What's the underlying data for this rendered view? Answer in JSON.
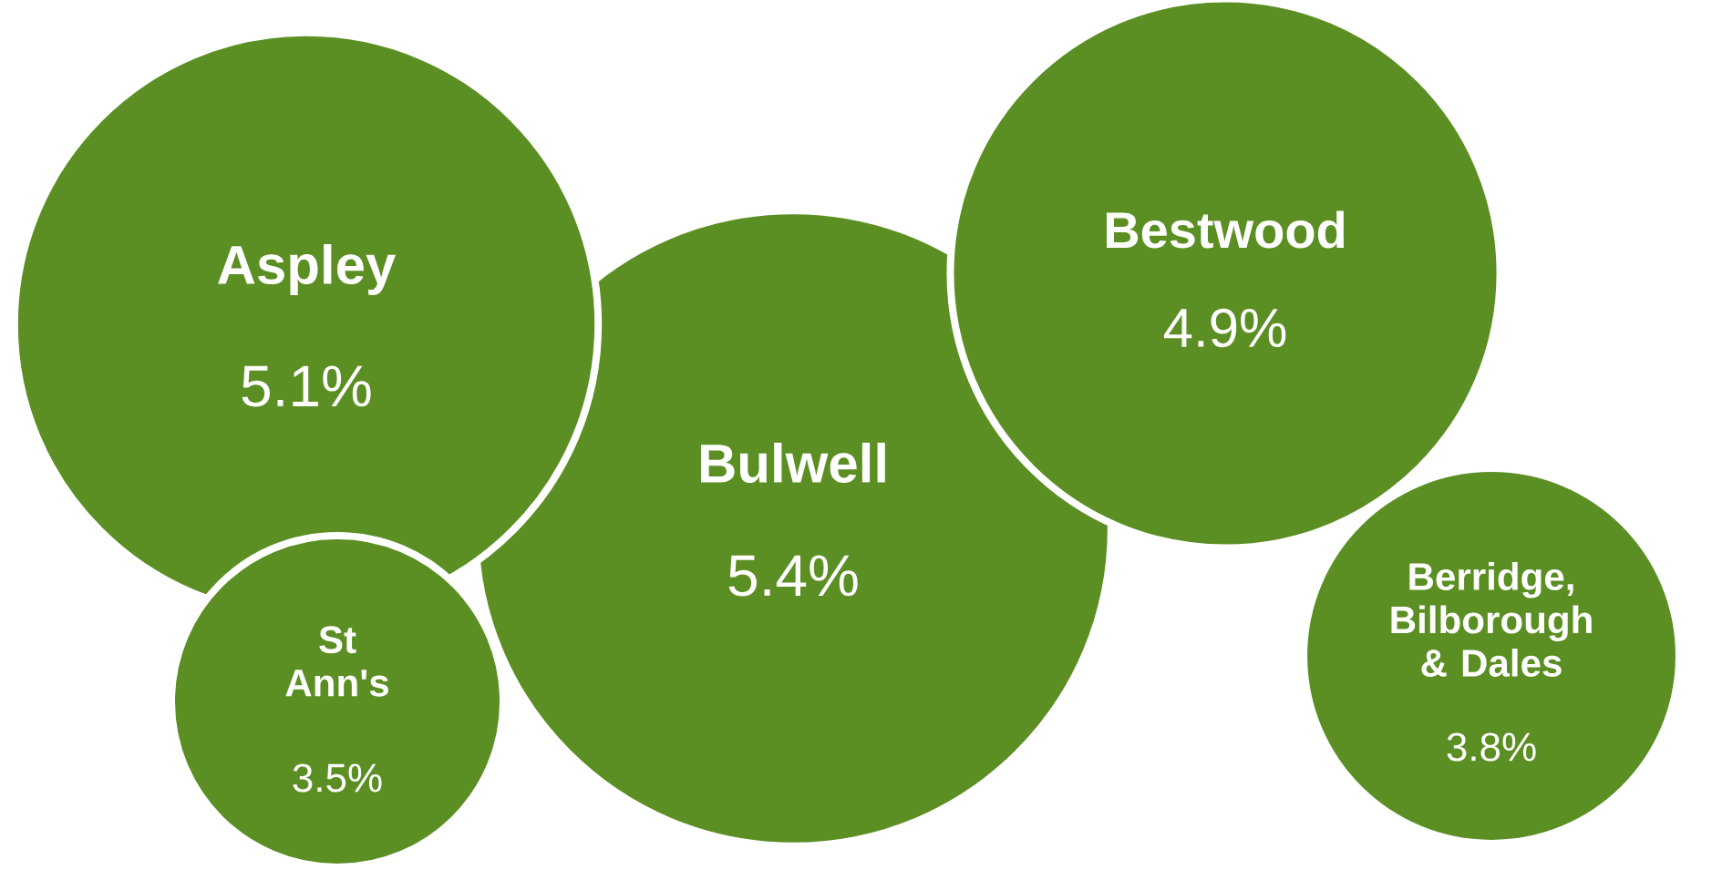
{
  "chart_data": {
    "type": "other",
    "categories": [
      "Aspley",
      "St Ann's",
      "Bulwell",
      "Bestwood",
      "Berridge, Bilborough & Dales"
    ],
    "values": [
      5.1,
      3.5,
      5.4,
      4.9,
      3.8
    ],
    "value_labels": [
      "5.1%",
      "3.5%",
      "5.4%",
      "4.9%",
      "3.8%"
    ],
    "color": "#5b8f23"
  }
}
